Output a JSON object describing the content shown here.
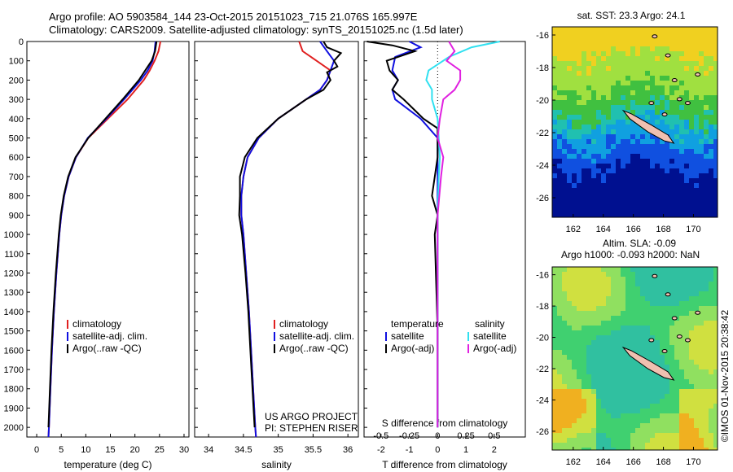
{
  "header": {
    "line1": "Argo profile: AO 5903584_144 23-Oct-2015 20151023_715 21.076S 165.997E",
    "line2": "Climatology: CARS2009. Satellite-adjusted climatology: synTS_20151025.nc (1.5d later)"
  },
  "credit": "US ARGO PROJECT",
  "pi": "PI: STEPHEN RISER",
  "imos_stamp": "©IMOS 01-Nov-2015 20:38:42",
  "colors": {
    "climatology": "#e02020",
    "satellite": "#1010e0",
    "argo": "#000000",
    "sat_salinity": "#30e0f0",
    "argo_salinity": "#e020e0"
  },
  "depth_ticks": [
    0,
    100,
    200,
    300,
    400,
    500,
    600,
    700,
    800,
    900,
    1000,
    1100,
    1200,
    1300,
    1400,
    1500,
    1600,
    1700,
    1800,
    1900,
    2000
  ],
  "chart_data": [
    {
      "type": "line",
      "name": "temperature",
      "xlabel": "temperature (deg C)",
      "xlim": [
        -2,
        31
      ],
      "ylim": [
        2050,
        0
      ],
      "xticks": [
        0,
        5,
        10,
        15,
        20,
        25,
        30
      ],
      "legend": [
        "climatology",
        "satellite-adj. clim.",
        "Argo(..raw -QC)"
      ],
      "series": [
        {
          "name": "climatology",
          "depth": [
            0,
            50,
            100,
            150,
            200,
            300,
            400,
            500,
            600,
            700,
            800,
            900,
            1000,
            1200,
            1400,
            1600,
            1800,
            2000,
            2050
          ],
          "values": [
            25.2,
            24.8,
            24.0,
            23.0,
            21.8,
            18.5,
            14.5,
            10.5,
            8.0,
            6.5,
            5.6,
            5.0,
            4.6,
            4.0,
            3.5,
            3.1,
            2.8,
            2.5,
            2.4
          ]
        },
        {
          "name": "satellite-adj. clim.",
          "depth": [
            0,
            50,
            100,
            150,
            200,
            300,
            400,
            500,
            600,
            700,
            800,
            900,
            1000,
            1200,
            1400,
            1600,
            1800,
            2000,
            2050
          ],
          "values": [
            24.2,
            24.0,
            23.6,
            22.6,
            21.2,
            17.8,
            14.2,
            10.4,
            8.0,
            6.5,
            5.6,
            5.0,
            4.6,
            4.0,
            3.5,
            3.1,
            2.8,
            2.5,
            2.4
          ]
        },
        {
          "name": "Argo(..raw -QC)",
          "depth": [
            0,
            50,
            100,
            150,
            200,
            300,
            400,
            500,
            600,
            700,
            800,
            900,
            1000,
            1200,
            1400,
            1600,
            1800,
            2000
          ],
          "values": [
            24.4,
            24.1,
            23.4,
            22.1,
            20.8,
            17.5,
            14.0,
            10.5,
            7.9,
            6.4,
            5.5,
            4.9,
            4.5,
            3.9,
            3.4,
            3.0,
            2.7,
            2.4
          ]
        }
      ]
    },
    {
      "type": "line",
      "name": "salinity",
      "xlabel": "salinity",
      "xlim": [
        33.8,
        36.15
      ],
      "ylim": [
        2050,
        0
      ],
      "xticks": [
        34,
        34.5,
        35,
        35.5,
        36
      ],
      "legend": [
        "climatology",
        "satellite-adj. clim.",
        "Argo(..raw -QC)"
      ],
      "series": [
        {
          "name": "climatology",
          "depth": [
            0,
            50,
            100,
            150,
            200,
            250,
            300,
            400,
            500,
            600,
            700,
            800,
            900,
            1000,
            1200,
            1400,
            1600,
            1800,
            2000,
            2050
          ],
          "values": [
            35.3,
            35.35,
            35.55,
            35.75,
            35.7,
            35.6,
            35.4,
            35.0,
            34.72,
            34.56,
            34.5,
            34.47,
            34.47,
            34.5,
            34.54,
            34.58,
            34.61,
            34.64,
            34.67,
            34.68
          ]
        },
        {
          "name": "satellite-adj. clim.",
          "depth": [
            0,
            50,
            100,
            150,
            200,
            250,
            300,
            400,
            500,
            600,
            700,
            800,
            900,
            1000,
            1200,
            1400,
            1600,
            1800,
            2000,
            2050
          ],
          "values": [
            35.6,
            35.7,
            35.8,
            35.75,
            35.7,
            35.6,
            35.4,
            35.0,
            34.72,
            34.56,
            34.5,
            34.47,
            34.47,
            34.5,
            34.54,
            34.58,
            34.61,
            34.64,
            34.67,
            34.68
          ]
        },
        {
          "name": "Argo(..raw -QC)",
          "depth": [
            0,
            30,
            60,
            100,
            130,
            160,
            200,
            250,
            300,
            400,
            500,
            600,
            700,
            800,
            900,
            1000,
            1200,
            1400,
            1600,
            1800,
            2000
          ],
          "values": [
            35.65,
            35.7,
            35.9,
            35.8,
            35.85,
            35.7,
            35.75,
            35.65,
            35.4,
            35.0,
            34.7,
            34.52,
            34.45,
            34.45,
            34.44,
            34.48,
            34.53,
            34.57,
            34.6,
            34.63,
            34.66
          ]
        }
      ]
    },
    {
      "type": "line",
      "name": "differences",
      "xlabel": "T difference from climatology",
      "xlabel_top": "S difference from climatology",
      "xlim": [
        -2.6,
        3.1
      ],
      "ylim": [
        2050,
        0
      ],
      "xticks": [
        -2,
        -1,
        0,
        1,
        2
      ],
      "xticks_top": [
        -0.5,
        -0.25,
        0,
        0.25,
        0.5
      ],
      "legend_left_title": "temperature",
      "legend_right_title": "salinity",
      "legend_left": [
        "satellite",
        "Argo(-adj)"
      ],
      "legend_right": [
        "satellite",
        "Argo(-adj)"
      ],
      "series": [
        {
          "name": "temperature satellite",
          "depth": [
            0,
            30,
            80,
            150,
            200,
            250,
            300,
            400,
            450,
            500,
            600,
            800,
            1000,
            1500,
            2000
          ],
          "values": [
            -1.0,
            -0.6,
            -1.5,
            -1.6,
            -1.4,
            -1.6,
            -1.5,
            -0.6,
            -0.3,
            0,
            0,
            0,
            0,
            0,
            0
          ]
        },
        {
          "name": "temperature Argo(-adj)",
          "depth": [
            0,
            20,
            50,
            100,
            150,
            200,
            250,
            300,
            400,
            450,
            500,
            600,
            800,
            900,
            1000,
            1500,
            2000
          ],
          "values": [
            -2.5,
            -1.6,
            -0.8,
            -1.8,
            -1.7,
            -1.4,
            -1.6,
            -1.2,
            -0.5,
            0,
            0,
            0,
            -0.2,
            0,
            -0.1,
            0,
            0
          ]
        },
        {
          "name": "salinity satellite",
          "depth": [
            0,
            30,
            80,
            150,
            200,
            250,
            300,
            400,
            500,
            600,
            700,
            900,
            1200,
            1500,
            2000
          ],
          "values": [
            0.55,
            0.3,
            0.1,
            -0.08,
            -0.1,
            -0.05,
            -0.05,
            0.0,
            0.01,
            0.02,
            0.01,
            0.0,
            0.0,
            0.0,
            0.0
          ]
        },
        {
          "name": "salinity Argo(-adj)",
          "depth": [
            0,
            50,
            100,
            150,
            200,
            250,
            300,
            400,
            500,
            600,
            700,
            900,
            1200,
            1500,
            2000
          ],
          "values": [
            0.1,
            0.15,
            0.08,
            0.2,
            0.2,
            0.15,
            0.05,
            0.02,
            0.0,
            0.05,
            0.03,
            0.0,
            0.0,
            0.0,
            0.0
          ]
        }
      ]
    }
  ],
  "maps": [
    {
      "title": "sat. SST: 23.3  Argo: 24.1",
      "lat_ticks": [
        -16,
        -18,
        -20,
        -22,
        -24,
        -26
      ],
      "lon_ticks": [
        162,
        164,
        166,
        168,
        170
      ]
    },
    {
      "title_line1": "Altim. SLA: -0.09",
      "title_line2": "Argo h1000: -0.093  h2000: NaN",
      "lat_ticks": [
        -16,
        -18,
        -20,
        -22,
        -24,
        -26
      ],
      "lon_ticks": [
        162,
        164,
        166,
        168,
        170
      ]
    }
  ]
}
